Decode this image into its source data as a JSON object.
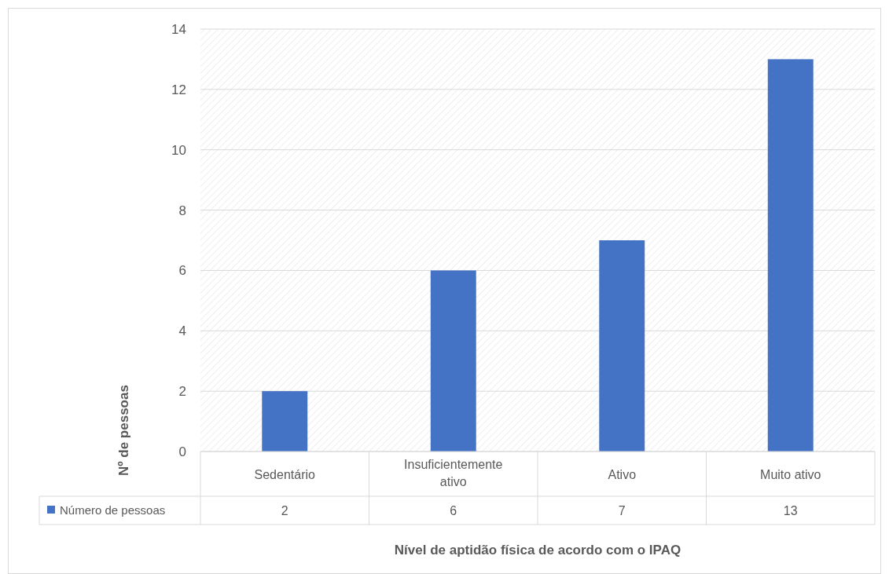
{
  "chart_data": {
    "type": "bar",
    "categories": [
      "Sedentário",
      "Insuficientemente ativo",
      "Ativo",
      "Muito ativo"
    ],
    "series": [
      {
        "name": "Número de pessoas",
        "color": "#4472c4",
        "values": [
          2,
          6,
          7,
          13
        ]
      }
    ],
    "xlabel": "Nível de aptidão física de acordo com o IPAQ",
    "ylabel": "Nº de pessoas",
    "ylim": [
      0,
      14
    ],
    "yticks": [
      0,
      2,
      4,
      6,
      8,
      10,
      12,
      14
    ],
    "grid": "y",
    "legend": "bottom",
    "data_labels": true
  }
}
